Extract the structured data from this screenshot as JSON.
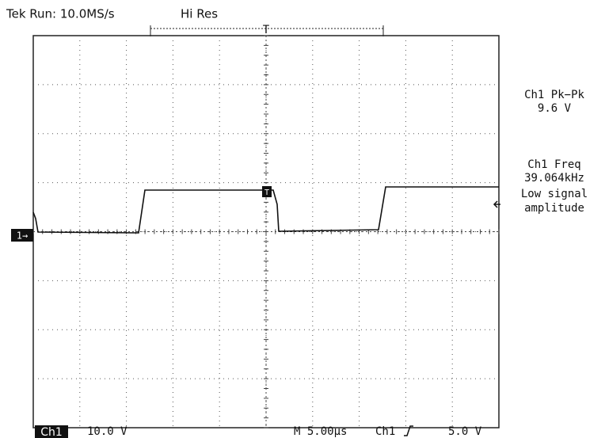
{
  "header": {
    "status": "Tek Run: 10.0MS/s",
    "mode": "Hi Res",
    "trigger_marker": "T"
  },
  "measurements": [
    {
      "label": "Ch1 Pk−Pk",
      "value": "9.6 V"
    },
    {
      "label": "Ch1 Freq",
      "value": "39.064kHz",
      "note": [
        "Low signal",
        "amplitude"
      ]
    }
  ],
  "channel_marker": "1→",
  "trigger_point_marker": "T",
  "footer": {
    "channel": "Ch1",
    "scale": "10.0 V",
    "timebase": "M 5.00µs",
    "trigger_source": "Ch1",
    "trigger_level": "5.0 V"
  }
}
